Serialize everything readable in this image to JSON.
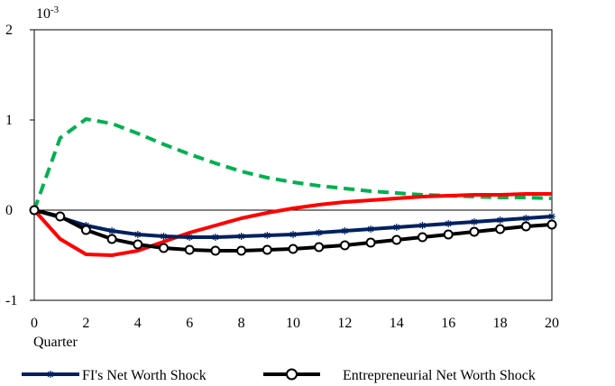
{
  "chart_data": {
    "type": "line",
    "title": "",
    "xlabel": "Quarter",
    "ylabel": "",
    "scale_label": "10-3",
    "scale_label_base": "10",
    "scale_label_exp": "-3",
    "xlim": [
      0,
      20
    ],
    "ylim": [
      -1,
      2
    ],
    "x_ticks": [
      0,
      2,
      4,
      6,
      8,
      10,
      12,
      14,
      16,
      18,
      20
    ],
    "y_ticks": [
      -1,
      0,
      1,
      2
    ],
    "x_tick_labels": [
      "0",
      "2",
      "4",
      "6",
      "8",
      "10",
      "12",
      "14",
      "16",
      "18",
      "20"
    ],
    "y_tick_labels": [
      "-1",
      "0",
      "1",
      "2"
    ],
    "grid": false,
    "legend_position": "bottom",
    "x": [
      0,
      1,
      2,
      3,
      4,
      5,
      6,
      7,
      8,
      9,
      10,
      11,
      12,
      13,
      14,
      15,
      16,
      17,
      18,
      19,
      20
    ],
    "series": [
      {
        "name": "FI's Net Worth Shock",
        "color": "#002060",
        "marker": "asterisk",
        "values": [
          0.0,
          -0.08,
          -0.17,
          -0.23,
          -0.27,
          -0.29,
          -0.3,
          -0.3,
          -0.29,
          -0.28,
          -0.27,
          -0.25,
          -0.23,
          -0.21,
          -0.19,
          -0.17,
          -0.15,
          -0.13,
          -0.11,
          -0.09,
          -0.07
        ]
      },
      {
        "name": "Entrepreneurial Net Worth Shock",
        "color": "#000000",
        "marker": "open-circle",
        "values": [
          0.0,
          -0.07,
          -0.22,
          -0.32,
          -0.38,
          -0.42,
          -0.44,
          -0.45,
          -0.45,
          -0.44,
          -0.43,
          -0.41,
          -0.39,
          -0.36,
          -0.33,
          -0.3,
          -0.27,
          -0.24,
          -0.21,
          -0.18,
          -0.16
        ]
      },
      {
        "color": "#ff0000",
        "dash": "solid",
        "values": [
          0.0,
          -0.32,
          -0.49,
          -0.5,
          -0.45,
          -0.35,
          -0.25,
          -0.17,
          -0.09,
          -0.03,
          0.02,
          0.06,
          0.09,
          0.11,
          0.13,
          0.15,
          0.16,
          0.17,
          0.17,
          0.18,
          0.18
        ]
      },
      {
        "color": "#00b050",
        "dash": "dashed",
        "values": [
          0.0,
          0.8,
          1.01,
          0.96,
          0.85,
          0.73,
          0.62,
          0.52,
          0.43,
          0.36,
          0.31,
          0.27,
          0.24,
          0.21,
          0.19,
          0.17,
          0.16,
          0.15,
          0.14,
          0.14,
          0.13
        ]
      }
    ]
  }
}
